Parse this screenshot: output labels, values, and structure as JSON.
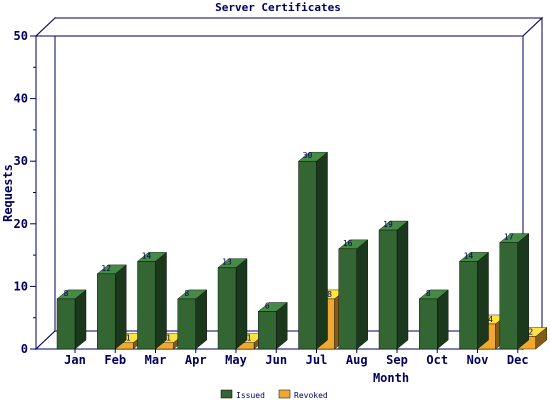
{
  "chart_data": {
    "type": "bar",
    "title": "Server Certificates",
    "xlabel": "Month",
    "ylabel": "Requests",
    "categories": [
      "Jan",
      "Feb",
      "Mar",
      "Apr",
      "May",
      "Jun",
      "Jul",
      "Aug",
      "Sep",
      "Oct",
      "Nov",
      "Dec"
    ],
    "yticks": [
      0,
      10,
      20,
      30,
      40,
      50
    ],
    "ylim": [
      0,
      50
    ],
    "grid": false,
    "legend_position": "bottom-center",
    "series": [
      {
        "name": "Issued",
        "color": "#336633",
        "values": [
          8,
          12,
          14,
          8,
          13,
          6,
          30,
          16,
          19,
          8,
          14,
          17
        ]
      },
      {
        "name": "Revoked",
        "color": "#f0a830",
        "values": [
          0,
          1,
          1,
          0,
          1,
          0,
          8,
          0,
          0,
          0,
          4,
          2
        ]
      }
    ]
  }
}
